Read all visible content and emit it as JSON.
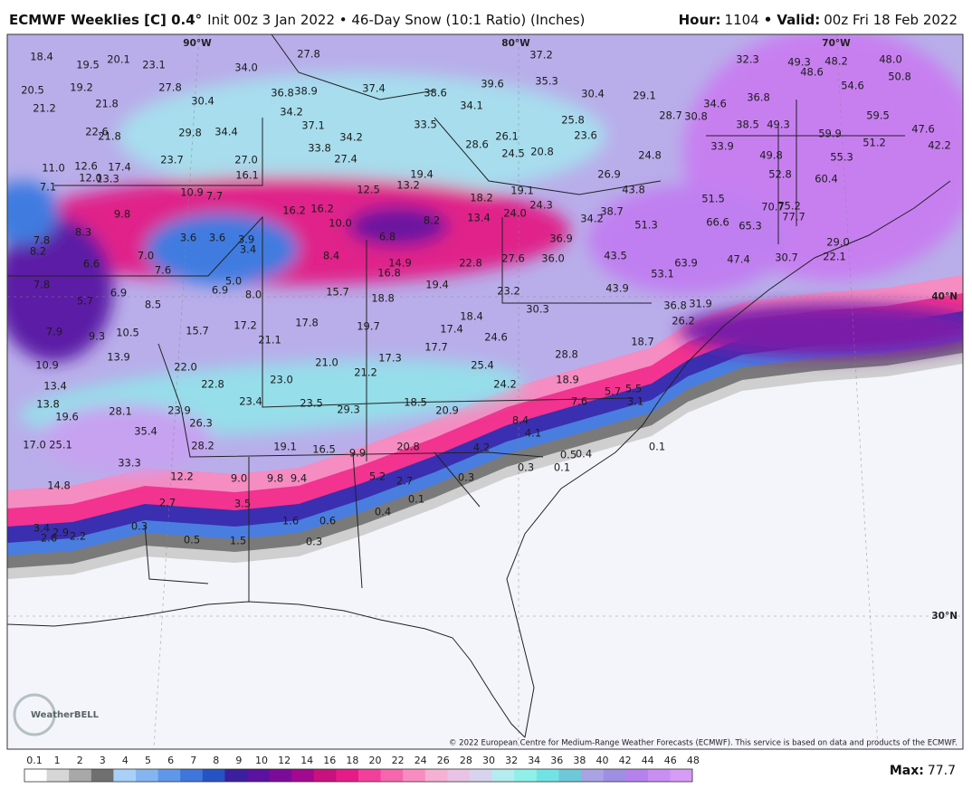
{
  "header": {
    "model": "ECMWF Weeklies [C] 0.4°",
    "description": "Init 00z 3 Jan 2022 • 46-Day Snow (10:1 Ratio) (Inches)",
    "hour_label": "Hour:",
    "hour": "1104",
    "separator": "•",
    "valid_label": "Valid:",
    "valid": "00z Fri 18 Feb 2022"
  },
  "map": {
    "longitude_labels": [
      "90°W",
      "80°W",
      "70°W"
    ],
    "latitude_labels": [
      "40°N",
      "30°N"
    ],
    "point_labels": [
      "18.4",
      "19.5",
      "20.1",
      "23.1",
      "34.0",
      "27.8",
      "37.2",
      "32.3",
      "49.3",
      "48.6",
      "48.2",
      "48.0",
      "50.8",
      "54.6",
      "20.5",
      "19.2",
      "27.8",
      "36.8",
      "38.9",
      "37.4",
      "38.6",
      "39.6",
      "35.3",
      "30.4",
      "29.1",
      "34.6",
      "36.8",
      "21.2",
      "21.8",
      "30.4",
      "34.2",
      "34.1",
      "28.7",
      "30.8",
      "38.5",
      "49.3",
      "59.5",
      "22.6",
      "21.8",
      "29.8",
      "34.4",
      "37.1",
      "33.5",
      "34.2",
      "25.8",
      "23.6",
      "59.9",
      "47.6",
      "51.2",
      "42.2",
      "26.1",
      "28.6",
      "24.5",
      "20.8",
      "33.9",
      "49.8",
      "55.3",
      "11.0",
      "12.6",
      "17.4",
      "23.7",
      "27.0",
      "33.8",
      "27.4",
      "16.1",
      "19.4",
      "26.9",
      "24.8",
      "52.8",
      "60.4",
      "12.0",
      "13.3",
      "7.1",
      "13.2",
      "12.5",
      "43.8",
      "51.5",
      "10.9",
      "7.7",
      "18.2",
      "19.1",
      "24.3",
      "16.2",
      "16.2",
      "70.7",
      "75.2",
      "77.7",
      "9.8",
      "10.0",
      "6.8",
      "8.2",
      "13.4",
      "24.0",
      "34.2",
      "38.7",
      "51.3",
      "66.6",
      "65.3",
      "7.8",
      "8.3",
      "3.6",
      "3.6",
      "3.9",
      "3.4",
      "8.2",
      "7.0",
      "8.4",
      "14.9",
      "22.8",
      "27.6",
      "36.0",
      "43.5",
      "36.9",
      "29.0",
      "22.1",
      "30.7",
      "47.4",
      "63.9",
      "53.1",
      "6.6",
      "7.6",
      "16.8",
      "19.4",
      "5.0",
      "43.9",
      "7.8",
      "5.7",
      "6.9",
      "6.9",
      "8.0",
      "15.7",
      "18.8",
      "23.2",
      "8.5",
      "36.8",
      "31.9",
      "30.3",
      "18.4",
      "26.2",
      "7.9",
      "9.3",
      "10.5",
      "15.7",
      "17.2",
      "17.8",
      "19.7",
      "17.4",
      "24.6",
      "21.1",
      "17.7",
      "28.8",
      "18.7",
      "13.9",
      "17.3",
      "21.0",
      "10.9",
      "22.0",
      "21.2",
      "25.4",
      "23.0",
      "22.8",
      "18.9",
      "24.2",
      "13.4",
      "5.7",
      "5.5",
      "13.8",
      "23.4",
      "23.5",
      "18.5",
      "7.6",
      "3.1",
      "19.6",
      "28.1",
      "23.9",
      "29.3",
      "20.9",
      "26.3",
      "8.4",
      "35.4",
      "4.1",
      "17.0",
      "25.1",
      "28.2",
      "19.1",
      "16.5",
      "9.9",
      "20.8",
      "4.2",
      "0.5",
      "0.4",
      "0.1",
      "33.3",
      "12.2",
      "9.0",
      "9.8",
      "9.4",
      "5.2",
      "2.7",
      "0.3",
      "0.3",
      "0.1",
      "14.8",
      "2.7",
      "3.5",
      "0.1",
      "0.4",
      "1.6",
      "0.6",
      "3.4",
      "2.9",
      "2.2",
      "2.6",
      "0.3",
      "0.5",
      "1.5",
      "0.3"
    ],
    "copyright": "© 2022 European Centre for Medium-Range Weather Forecasts (ECMWF). This service is based on data and products of the ECMWF.",
    "logo": "WeatherBELL"
  },
  "colorbar": {
    "ticks": [
      0.1,
      1,
      2,
      3,
      4,
      5,
      6,
      7,
      8,
      9,
      10,
      12,
      14,
      16,
      18,
      20,
      22,
      24,
      26,
      28,
      30,
      32,
      34,
      36,
      38,
      40,
      42,
      44,
      46,
      48
    ],
    "colors": [
      "#ffffff",
      "#d6d6d6",
      "#a8a8a8",
      "#707070",
      "#a9d0f7",
      "#84b5f1",
      "#5f97e9",
      "#3f76dc",
      "#2653c4",
      "#3b1f9e",
      "#5b12a0",
      "#7c0b9a",
      "#a2098e",
      "#c8117f",
      "#e61b88",
      "#f23f9c",
      "#f566ae",
      "#f88cc1",
      "#f5b0d4",
      "#e9c3e6",
      "#d8d3ef",
      "#b4ecf0",
      "#8ff0ea",
      "#72e3e4",
      "#6fc7da",
      "#a9a3e6",
      "#9f8fe2",
      "#b581ea",
      "#c98ef2",
      "#d79cf6"
    ]
  },
  "max": {
    "label": "Max:",
    "value": "77.7"
  }
}
